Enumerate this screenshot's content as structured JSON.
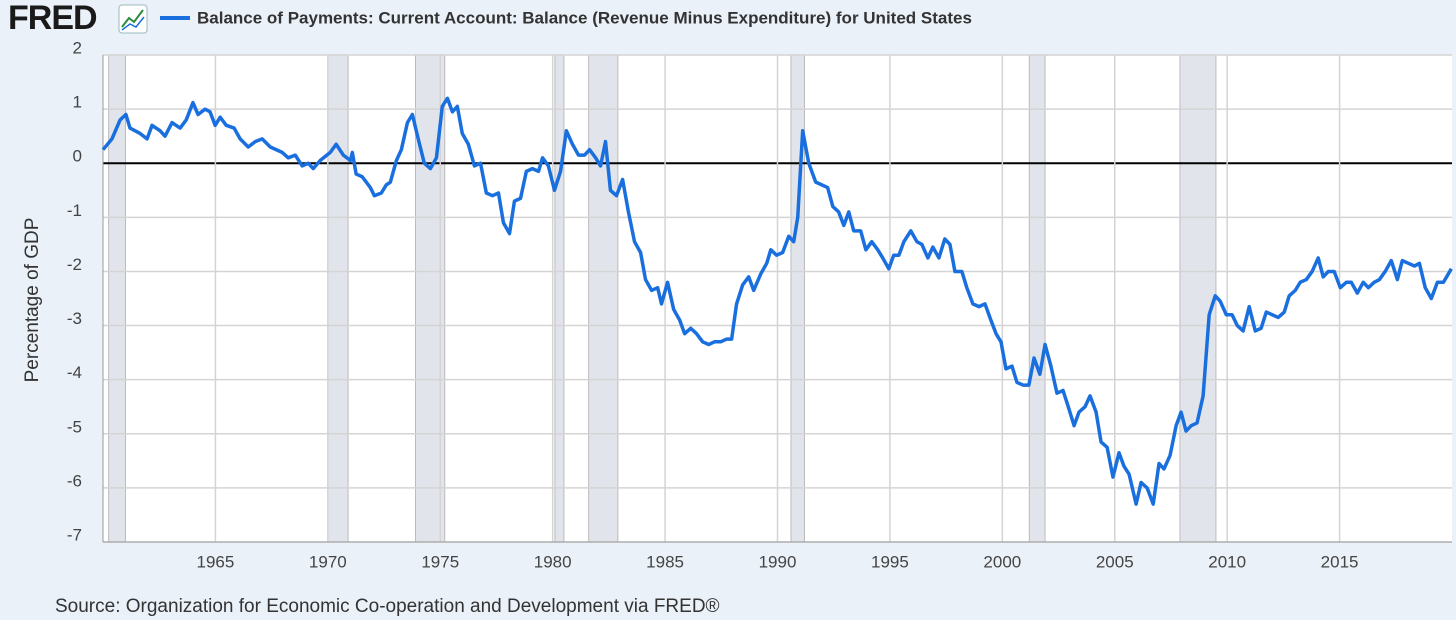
{
  "logo": "FRED",
  "chart_data": {
    "type": "line",
    "source": "Source: Organization for Economic Co-operation and Development via FRED®",
    "y_label": "Percentage of GDP",
    "grid": true,
    "xlim": [
      1960,
      2020
    ],
    "ylim": [
      -7,
      2
    ],
    "xticks": [
      1965,
      1970,
      1975,
      1980,
      1985,
      1990,
      1995,
      2000,
      2005,
      2010,
      2015
    ],
    "yticks": [
      -7,
      -6,
      -5,
      -4,
      -3,
      -2,
      -1,
      0,
      1,
      2
    ],
    "recessions": [
      [
        1960.25,
        1961.0
      ],
      [
        1970.0,
        1970.9
      ],
      [
        1973.9,
        1975.2
      ],
      [
        1980.1,
        1980.5
      ],
      [
        1981.6,
        1982.9
      ],
      [
        1990.6,
        1991.2
      ],
      [
        2001.2,
        2001.9
      ],
      [
        2007.9,
        2009.5
      ]
    ],
    "recession_color": "#e1e5eb",
    "x": [
      1960.0,
      1960.4,
      1960.76,
      1961.02,
      1961.2,
      1961.65,
      1961.96,
      1962.18,
      1962.54,
      1962.76,
      1963.07,
      1963.43,
      1963.7,
      1964.0,
      1964.23,
      1964.54,
      1964.76,
      1964.99,
      1965.21,
      1965.48,
      1965.83,
      1966.1,
      1966.46,
      1966.77,
      1967.08,
      1967.44,
      1967.97,
      1968.24,
      1968.55,
      1968.86,
      1969.13,
      1969.35,
      1969.66,
      1970.11,
      1970.37,
      1970.69,
      1971.0,
      1971.09,
      1971.26,
      1971.53,
      1971.89,
      1972.07,
      1972.38,
      1972.6,
      1972.78,
      1973.05,
      1973.27,
      1973.54,
      1973.76,
      1974.02,
      1974.29,
      1974.56,
      1974.83,
      1975.09,
      1975.32,
      1975.54,
      1975.76,
      1975.98,
      1976.25,
      1976.52,
      1976.79,
      1977.05,
      1977.32,
      1977.59,
      1977.81,
      1978.08,
      1978.3,
      1978.57,
      1978.83,
      1979.1,
      1979.37,
      1979.55,
      1979.81,
      1980.08,
      1980.35,
      1980.61,
      1980.88,
      1981.15,
      1981.42,
      1981.64,
      1981.91,
      1982.13,
      1982.35,
      1982.57,
      1982.84,
      1983.11,
      1983.37,
      1983.64,
      1983.91,
      1984.13,
      1984.4,
      1984.67,
      1984.84,
      1985.11,
      1985.38,
      1985.65,
      1985.87,
      1986.14,
      1986.4,
      1986.67,
      1986.94,
      1987.2,
      1987.47,
      1987.74,
      1987.96,
      1988.18,
      1988.45,
      1988.72,
      1988.94,
      1989.25,
      1989.52,
      1989.7,
      1989.96,
      1990.23,
      1990.5,
      1990.72,
      1990.9,
      1991.12,
      1991.39,
      1991.7,
      1991.97,
      1992.23,
      1992.46,
      1992.72,
      1992.95,
      1993.17,
      1993.39,
      1993.7,
      1993.93,
      1994.19,
      1994.46,
      1994.68,
      1994.95,
      1995.17,
      1995.4,
      1995.62,
      1995.93,
      1996.2,
      1996.42,
      1996.69,
      1996.91,
      1997.18,
      1997.44,
      1997.67,
      1997.89,
      1998.2,
      1998.42,
      1998.69,
      1998.96,
      1999.23,
      1999.49,
      1999.72,
      1999.94,
      2000.16,
      2000.43,
      2000.65,
      2000.92,
      2001.18,
      2001.41,
      2001.67,
      2001.9,
      2002.16,
      2002.43,
      2002.7,
      2002.97,
      2003.19,
      2003.41,
      2003.68,
      2003.9,
      2004.17,
      2004.39,
      2004.66,
      2004.92,
      2005.19,
      2005.41,
      2005.64,
      2005.95,
      2006.17,
      2006.44,
      2006.71,
      2006.97,
      2007.19,
      2007.46,
      2007.73,
      2007.95,
      2008.17,
      2008.4,
      2008.66,
      2008.93,
      2009.2,
      2009.47,
      2009.69,
      2009.96,
      2010.22,
      2010.45,
      2010.71,
      2010.98,
      2011.25,
      2011.51,
      2011.74,
      2012.0,
      2012.27,
      2012.54,
      2012.76,
      2013.03,
      2013.25,
      2013.52,
      2013.78,
      2014.05,
      2014.27,
      2014.5,
      2014.76,
      2015.03,
      2015.3,
      2015.52,
      2015.79,
      2016.05,
      2016.28,
      2016.54,
      2016.77,
      2017.03,
      2017.3,
      2017.57,
      2017.79,
      2018.06,
      2018.33,
      2018.55,
      2018.81,
      2019.08,
      2019.35,
      2019.62,
      2019.97
    ],
    "series": [
      {
        "name": "Balance of Payments: Current Account: Balance (Revenue Minus Expenditure) for United States",
        "color": "#1a6fdf",
        "values": [
          0.25,
          0.45,
          0.8,
          0.9,
          0.65,
          0.55,
          0.45,
          0.7,
          0.6,
          0.5,
          0.75,
          0.65,
          0.8,
          1.12,
          0.9,
          1.0,
          0.95,
          0.7,
          0.85,
          0.7,
          0.65,
          0.45,
          0.3,
          0.4,
          0.45,
          0.3,
          0.2,
          0.1,
          0.15,
          -0.05,
          0.0,
          -0.1,
          0.05,
          0.2,
          0.35,
          0.15,
          0.05,
          0.2,
          -0.2,
          -0.25,
          -0.45,
          -0.6,
          -0.55,
          -0.4,
          -0.35,
          0.05,
          0.25,
          0.75,
          0.9,
          0.45,
          0.0,
          -0.1,
          0.1,
          1.05,
          1.2,
          0.95,
          1.05,
          0.55,
          0.35,
          -0.05,
          0.0,
          -0.55,
          -0.6,
          -0.55,
          -1.1,
          -1.3,
          -0.7,
          -0.65,
          -0.15,
          -0.1,
          -0.15,
          0.1,
          -0.05,
          -0.5,
          -0.15,
          0.6,
          0.35,
          0.15,
          0.15,
          0.25,
          0.1,
          -0.05,
          0.4,
          -0.5,
          -0.6,
          -0.3,
          -0.9,
          -1.45,
          -1.65,
          -2.15,
          -2.35,
          -2.3,
          -2.6,
          -2.2,
          -2.7,
          -2.9,
          -3.15,
          -3.05,
          -3.15,
          -3.3,
          -3.35,
          -3.3,
          -3.3,
          -3.25,
          -3.25,
          -2.6,
          -2.25,
          -2.1,
          -2.35,
          -2.05,
          -1.85,
          -1.6,
          -1.7,
          -1.65,
          -1.35,
          -1.45,
          -1.0,
          0.6,
          0.0,
          -0.35,
          -0.4,
          -0.45,
          -0.8,
          -0.9,
          -1.15,
          -0.9,
          -1.25,
          -1.25,
          -1.6,
          -1.45,
          -1.6,
          -1.75,
          -1.95,
          -1.7,
          -1.7,
          -1.45,
          -1.25,
          -1.45,
          -1.5,
          -1.75,
          -1.55,
          -1.75,
          -1.4,
          -1.5,
          -2.0,
          -2.0,
          -2.3,
          -2.6,
          -2.65,
          -2.6,
          -2.9,
          -3.15,
          -3.3,
          -3.8,
          -3.75,
          -4.05,
          -4.1,
          -4.1,
          -3.6,
          -3.9,
          -3.35,
          -3.75,
          -4.25,
          -4.2,
          -4.55,
          -4.85,
          -4.6,
          -4.5,
          -4.3,
          -4.6,
          -5.15,
          -5.25,
          -5.8,
          -5.35,
          -5.6,
          -5.75,
          -6.3,
          -5.9,
          -6.0,
          -6.3,
          -5.55,
          -5.65,
          -5.4,
          -4.85,
          -4.6,
          -4.95,
          -4.85,
          -4.8,
          -4.3,
          -2.8,
          -2.45,
          -2.55,
          -2.8,
          -2.8,
          -3.0,
          -3.1,
          -2.65,
          -3.1,
          -3.05,
          -2.75,
          -2.8,
          -2.85,
          -2.75,
          -2.45,
          -2.35,
          -2.2,
          -2.15,
          -2.0,
          -1.75,
          -2.1,
          -2.0,
          -2.0,
          -2.3,
          -2.2,
          -2.2,
          -2.4,
          -2.2,
          -2.3,
          -2.2,
          -2.15,
          -2.0,
          -1.8,
          -2.15,
          -1.8,
          -1.85,
          -1.9,
          -1.85,
          -2.3,
          -2.5,
          -2.2,
          -2.2,
          -1.95
        ]
      }
    ]
  }
}
